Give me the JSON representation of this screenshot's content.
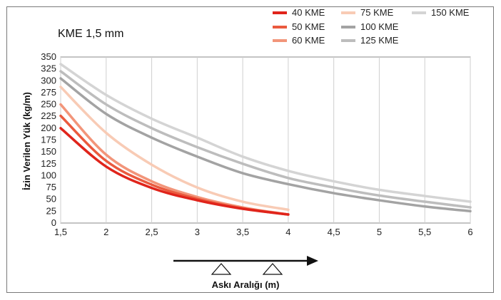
{
  "chart_data": {
    "type": "line",
    "title": "KME 1,5 mm",
    "xlabel": "Askı Aralığı (m)",
    "ylabel": "İzin Verilen Yük (kg/m)",
    "xlim": [
      1.5,
      6
    ],
    "ylim": [
      0,
      350
    ],
    "x_ticks": [
      "1,5",
      "2",
      "2,5",
      "3",
      "3,5",
      "4",
      "4,5",
      "5",
      "5,5",
      "6"
    ],
    "y_ticks": [
      "0",
      "25",
      "50",
      "75",
      "100",
      "125",
      "150",
      "175",
      "200",
      "225",
      "250",
      "275",
      "300",
      "325",
      "350"
    ],
    "grid": true,
    "legend_position": "top-right",
    "series": [
      {
        "name": "40 KME",
        "color": "#e0241b",
        "x": [
          1.5,
          2,
          2.5,
          3,
          3.5,
          4
        ],
        "y": [
          200,
          119,
          74,
          48,
          30,
          18
        ]
      },
      {
        "name": "50 KME",
        "color": "#ea5a3e",
        "x": [
          1.5,
          2,
          2.5,
          3,
          3.5,
          4
        ],
        "y": [
          226,
          131,
          81,
          51,
          31,
          18
        ]
      },
      {
        "name": "60 KME",
        "color": "#f2957a",
        "x": [
          1.5,
          2,
          2.5,
          3,
          3.5,
          4
        ],
        "y": [
          250,
          144,
          88,
          55,
          33,
          18
        ]
      },
      {
        "name": "75 KME",
        "color": "#f8cbb5",
        "x": [
          1.5,
          2,
          2.5,
          3,
          3.5,
          4
        ],
        "y": [
          287,
          190,
          123,
          75,
          45,
          28
        ]
      },
      {
        "name": "100 KME",
        "color": "#a3a3a3",
        "x": [
          1.5,
          2,
          2.5,
          3,
          3.5,
          4,
          4.5,
          5,
          5.5,
          6
        ],
        "y": [
          305,
          230,
          180,
          140,
          105,
          82,
          63,
          48,
          35,
          25
        ]
      },
      {
        "name": "125 KME",
        "color": "#bdbdbd",
        "x": [
          1.5,
          2,
          2.5,
          3,
          3.5,
          4,
          4.5,
          5,
          5.5,
          6
        ],
        "y": [
          320,
          250,
          200,
          160,
          125,
          95,
          75,
          58,
          45,
          33
        ]
      },
      {
        "name": "150 KME",
        "color": "#d4d4d4",
        "x": [
          1.5,
          2,
          2.5,
          3,
          3.5,
          4,
          4.5,
          5,
          5.5,
          6
        ],
        "y": [
          335,
          270,
          220,
          180,
          140,
          110,
          88,
          70,
          57,
          45
        ]
      }
    ]
  }
}
